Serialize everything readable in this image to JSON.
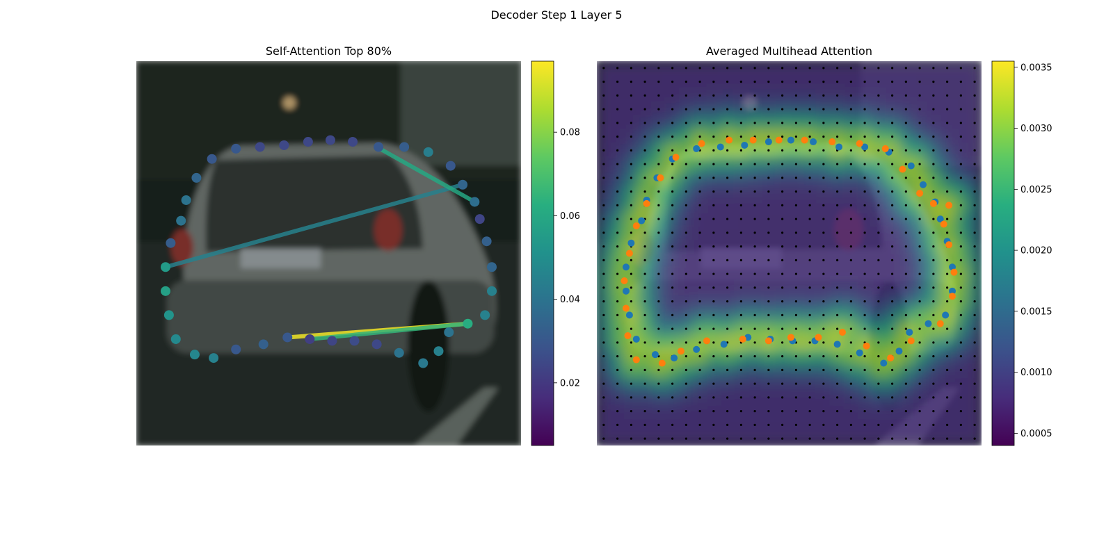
{
  "figure": {
    "suptitle": "Decoder Step 1 Layer 5"
  },
  "chart_data": [
    {
      "type": "scatter",
      "title": "Self-Attention Top 80%",
      "background": "blurred street scene: rear of a silver hatchback car on a road",
      "xlim": [
        0,
        224
      ],
      "ylim": [
        224,
        0
      ],
      "colormap": "viridis",
      "colorbar": {
        "min": 0.005,
        "max": 0.097,
        "ticks": [
          0.02,
          0.04,
          0.06,
          0.08
        ],
        "tick_labels": [
          "0.02",
          "0.04",
          "0.06",
          "0.08"
        ]
      },
      "points": [
        {
          "x": 17,
          "y": 120,
          "v": 0.055
        },
        {
          "x": 17,
          "y": 134,
          "v": 0.057
        },
        {
          "x": 19,
          "y": 148,
          "v": 0.052
        },
        {
          "x": 23,
          "y": 162,
          "v": 0.048
        },
        {
          "x": 34,
          "y": 171,
          "v": 0.047
        },
        {
          "x": 45,
          "y": 173,
          "v": 0.045
        },
        {
          "x": 58,
          "y": 168,
          "v": 0.03
        },
        {
          "x": 74,
          "y": 165,
          "v": 0.033
        },
        {
          "x": 88,
          "y": 161,
          "v": 0.03
        },
        {
          "x": 101,
          "y": 162,
          "v": 0.022
        },
        {
          "x": 114,
          "y": 163,
          "v": 0.024
        },
        {
          "x": 127,
          "y": 163,
          "v": 0.026
        },
        {
          "x": 140,
          "y": 165,
          "v": 0.025
        },
        {
          "x": 153,
          "y": 170,
          "v": 0.04
        },
        {
          "x": 167,
          "y": 176,
          "v": 0.042
        },
        {
          "x": 176,
          "y": 169,
          "v": 0.045
        },
        {
          "x": 182,
          "y": 158,
          "v": 0.04
        },
        {
          "x": 193,
          "y": 153,
          "v": 0.062
        },
        {
          "x": 203,
          "y": 148,
          "v": 0.045
        },
        {
          "x": 207,
          "y": 134,
          "v": 0.045
        },
        {
          "x": 207,
          "y": 120,
          "v": 0.035
        },
        {
          "x": 204,
          "y": 105,
          "v": 0.033
        },
        {
          "x": 200,
          "y": 92,
          "v": 0.024
        },
        {
          "x": 197,
          "y": 82,
          "v": 0.038
        },
        {
          "x": 190,
          "y": 72,
          "v": 0.035
        },
        {
          "x": 183,
          "y": 61,
          "v": 0.03
        },
        {
          "x": 170,
          "y": 53,
          "v": 0.044
        },
        {
          "x": 156,
          "y": 50,
          "v": 0.032
        },
        {
          "x": 141,
          "y": 50,
          "v": 0.03
        },
        {
          "x": 126,
          "y": 47,
          "v": 0.025
        },
        {
          "x": 113,
          "y": 46,
          "v": 0.025
        },
        {
          "x": 100,
          "y": 47,
          "v": 0.025
        },
        {
          "x": 86,
          "y": 49,
          "v": 0.025
        },
        {
          "x": 72,
          "y": 50,
          "v": 0.025
        },
        {
          "x": 58,
          "y": 51,
          "v": 0.03
        },
        {
          "x": 44,
          "y": 57,
          "v": 0.03
        },
        {
          "x": 35,
          "y": 68,
          "v": 0.035
        },
        {
          "x": 29,
          "y": 81,
          "v": 0.04
        },
        {
          "x": 26,
          "y": 93,
          "v": 0.04
        },
        {
          "x": 20,
          "y": 106,
          "v": 0.032
        }
      ],
      "lines": [
        {
          "x1": 17,
          "y1": 120,
          "x2": 190,
          "y2": 72,
          "v": 0.045
        },
        {
          "x1": 140,
          "y1": 50,
          "x2": 197,
          "y2": 82,
          "v": 0.06
        },
        {
          "x1": 88,
          "y1": 161,
          "x2": 193,
          "y2": 153,
          "v": 0.095
        },
        {
          "x1": 101,
          "y1": 162,
          "x2": 193,
          "y2": 153,
          "v": 0.065
        }
      ]
    },
    {
      "type": "heatmap",
      "title": "Averaged Multihead Attention",
      "background": "same car scene, dimmed, with attention heatmap overlay",
      "xlim": [
        0,
        224
      ],
      "ylim": [
        224,
        0
      ],
      "colormap": "viridis",
      "colorbar": {
        "min": 0.0004,
        "max": 0.00355,
        "ticks": [
          0.0005,
          0.001,
          0.0015,
          0.002,
          0.0025,
          0.003,
          0.0035
        ],
        "tick_labels": [
          "0.0005",
          "0.0010",
          "0.0015",
          "0.0020",
          "0.0025",
          "0.0030",
          "0.0035"
        ]
      },
      "grid_points": "regular 28x28 sampling grid of black dots",
      "series": [
        {
          "name": "",
          "color": "#1f77b4",
          "points": [
            {
              "x": 17,
              "y": 120
            },
            {
              "x": 17,
              "y": 134
            },
            {
              "x": 19,
              "y": 148
            },
            {
              "x": 23,
              "y": 162
            },
            {
              "x": 34,
              "y": 171
            },
            {
              "x": 45,
              "y": 173
            },
            {
              "x": 58,
              "y": 168
            },
            {
              "x": 74,
              "y": 165
            },
            {
              "x": 88,
              "y": 161
            },
            {
              "x": 101,
              "y": 162
            },
            {
              "x": 114,
              "y": 163
            },
            {
              "x": 127,
              "y": 163
            },
            {
              "x": 140,
              "y": 165
            },
            {
              "x": 153,
              "y": 170
            },
            {
              "x": 167,
              "y": 176
            },
            {
              "x": 176,
              "y": 169
            },
            {
              "x": 182,
              "y": 158
            },
            {
              "x": 193,
              "y": 153
            },
            {
              "x": 203,
              "y": 148
            },
            {
              "x": 207,
              "y": 134
            },
            {
              "x": 207,
              "y": 120
            },
            {
              "x": 204,
              "y": 105
            },
            {
              "x": 200,
              "y": 92
            },
            {
              "x": 197,
              "y": 82
            },
            {
              "x": 190,
              "y": 72
            },
            {
              "x": 183,
              "y": 61
            },
            {
              "x": 170,
              "y": 53
            },
            {
              "x": 156,
              "y": 50
            },
            {
              "x": 141,
              "y": 50
            },
            {
              "x": 126,
              "y": 47
            },
            {
              "x": 113,
              "y": 46
            },
            {
              "x": 100,
              "y": 47
            },
            {
              "x": 86,
              "y": 49
            },
            {
              "x": 72,
              "y": 50
            },
            {
              "x": 58,
              "y": 51
            },
            {
              "x": 44,
              "y": 57
            },
            {
              "x": 35,
              "y": 68
            },
            {
              "x": 29,
              "y": 81
            },
            {
              "x": 26,
              "y": 93
            },
            {
              "x": 20,
              "y": 106
            }
          ]
        },
        {
          "name": "",
          "color": "#ff7f0e",
          "points": [
            {
              "x": 37,
              "y": 68
            },
            {
              "x": 46,
              "y": 56
            },
            {
              "x": 61,
              "y": 48
            },
            {
              "x": 77,
              "y": 46
            },
            {
              "x": 91,
              "y": 46
            },
            {
              "x": 106,
              "y": 46
            },
            {
              "x": 121,
              "y": 46
            },
            {
              "x": 137,
              "y": 47
            },
            {
              "x": 153,
              "y": 48
            },
            {
              "x": 168,
              "y": 51
            },
            {
              "x": 178,
              "y": 63
            },
            {
              "x": 188,
              "y": 77
            },
            {
              "x": 196,
              "y": 83
            },
            {
              "x": 205,
              "y": 84
            },
            {
              "x": 202,
              "y": 95
            },
            {
              "x": 205,
              "y": 107
            },
            {
              "x": 208,
              "y": 123
            },
            {
              "x": 207,
              "y": 137
            },
            {
              "x": 200,
              "y": 153
            },
            {
              "x": 183,
              "y": 163
            },
            {
              "x": 171,
              "y": 173
            },
            {
              "x": 157,
              "y": 166
            },
            {
              "x": 143,
              "y": 158
            },
            {
              "x": 129,
              "y": 161
            },
            {
              "x": 113,
              "y": 161
            },
            {
              "x": 100,
              "y": 163
            },
            {
              "x": 85,
              "y": 162
            },
            {
              "x": 64,
              "y": 163
            },
            {
              "x": 49,
              "y": 169
            },
            {
              "x": 38,
              "y": 176
            },
            {
              "x": 23,
              "y": 174
            },
            {
              "x": 18,
              "y": 160
            },
            {
              "x": 17,
              "y": 144
            },
            {
              "x": 16,
              "y": 128
            },
            {
              "x": 19,
              "y": 112
            },
            {
              "x": 23,
              "y": 96
            },
            {
              "x": 29,
              "y": 83
            }
          ]
        }
      ]
    }
  ]
}
